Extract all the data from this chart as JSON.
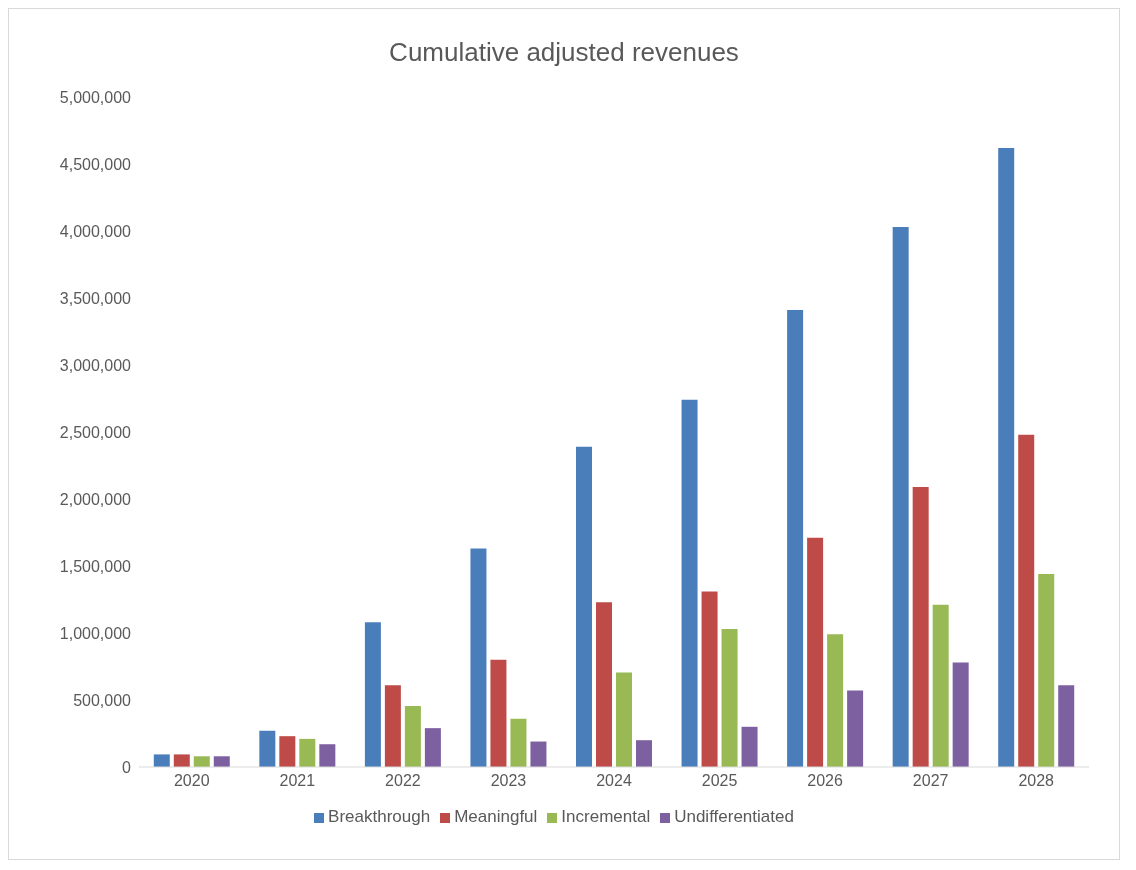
{
  "chart_data": {
    "type": "bar",
    "title": "Cumulative adjusted revenues",
    "categories": [
      "2020",
      "2021",
      "2022",
      "2023",
      "2024",
      "2025",
      "2026",
      "2027",
      "2028"
    ],
    "series": [
      {
        "name": "Breakthrough",
        "color": "#4a7ebb",
        "values": [
          94000,
          270000,
          1080000,
          1630000,
          2390000,
          2740000,
          3410000,
          4030000,
          4620000
        ]
      },
      {
        "name": "Meaningful",
        "color": "#be4b48",
        "values": [
          94000,
          230000,
          610000,
          800000,
          1230000,
          1310000,
          1710000,
          2090000,
          2480000
        ]
      },
      {
        "name": "Incremental",
        "color": "#98b954",
        "values": [
          80000,
          210000,
          455000,
          360000,
          705000,
          1030000,
          990000,
          1210000,
          1440000
        ]
      },
      {
        "name": "Undifferentiated",
        "color": "#7d60a0",
        "values": [
          80000,
          170000,
          290000,
          190000,
          200000,
          300000,
          570000,
          780000,
          610000
        ]
      }
    ],
    "ylim": [
      0,
      5000000
    ],
    "yticks": [
      0,
      {
        "value": 500000,
        "label": "500,000"
      },
      {
        "value": 1000000,
        "label": "1,000,000"
      },
      {
        "value": 1500000,
        "label": "1,500,000"
      },
      {
        "value": 2000000,
        "label": "2,000,000"
      },
      {
        "value": 2500000,
        "label": "2,500,000"
      },
      {
        "value": 3000000,
        "label": "3,000,000"
      },
      {
        "value": 3500000,
        "label": "3,500,000"
      },
      {
        "value": 4000000,
        "label": "4,000,000"
      },
      {
        "value": 4500000,
        "label": "4,500,000"
      },
      {
        "value": 5000000,
        "label": "5,000,000"
      }
    ],
    "grid": false,
    "legend": "bottom"
  }
}
